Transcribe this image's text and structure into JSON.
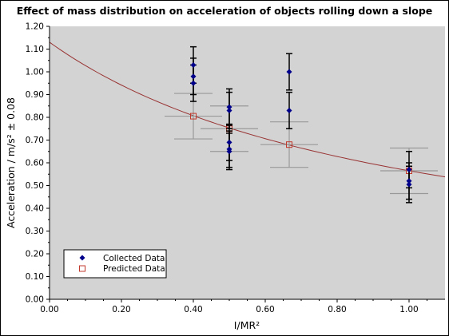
{
  "chart_data": {
    "type": "scatter",
    "title": "Effect of mass distribution on acceleration of objects rolling down a slope",
    "xlabel": "I/MR²",
    "ylabel": "Acceleration / m/s² ± 0.08",
    "xlim": [
      0,
      1.1
    ],
    "ylim": [
      0,
      1.2
    ],
    "x_ticks": [
      "0.00",
      "0.20",
      "0.40",
      "0.60",
      "0.80",
      "1.00"
    ],
    "y_ticks": [
      "0.00",
      "0.10",
      "0.20",
      "0.30",
      "0.40",
      "0.50",
      "0.60",
      "0.70",
      "0.80",
      "0.90",
      "1.00",
      "1.10",
      "1.20"
    ],
    "grid": false,
    "plot_background": "#d3d3d3",
    "legend_position": "bottom-left",
    "series": [
      {
        "name": "Collected Data",
        "marker": "diamond",
        "color": "#00008b",
        "error_color": "#000000",
        "y_error": 0.08,
        "points": [
          {
            "x": 0.4,
            "y": 1.03
          },
          {
            "x": 0.4,
            "y": 0.98
          },
          {
            "x": 0.4,
            "y": 0.95
          },
          {
            "x": 0.5,
            "y": 0.845
          },
          {
            "x": 0.5,
            "y": 0.83
          },
          {
            "x": 0.5,
            "y": 0.69
          },
          {
            "x": 0.5,
            "y": 0.66
          },
          {
            "x": 0.5,
            "y": 0.65
          },
          {
            "x": 0.6667,
            "y": 1.0
          },
          {
            "x": 0.6667,
            "y": 0.83
          },
          {
            "x": 1.0,
            "y": 0.57
          },
          {
            "x": 1.0,
            "y": 0.52
          },
          {
            "x": 1.0,
            "y": 0.505
          }
        ]
      },
      {
        "name": "Predicted Data",
        "marker": "open-square",
        "color": "#c0392b",
        "error_color": "#999999",
        "points": [
          {
            "x": 0.4,
            "y": 0.805,
            "xerr": 0.08,
            "yerr": 0.1
          },
          {
            "x": 0.5,
            "y": 0.75,
            "xerr": 0.08,
            "yerr": 0.1
          },
          {
            "x": 0.6667,
            "y": 0.68,
            "xerr": 0.08,
            "yerr": 0.1
          },
          {
            "x": 1.0,
            "y": 0.565,
            "xerr": 0.08,
            "yerr": 0.1
          }
        ]
      }
    ],
    "curve": {
      "color": "#993333",
      "formula": "y = 1.13 / (1 + x)"
    }
  }
}
